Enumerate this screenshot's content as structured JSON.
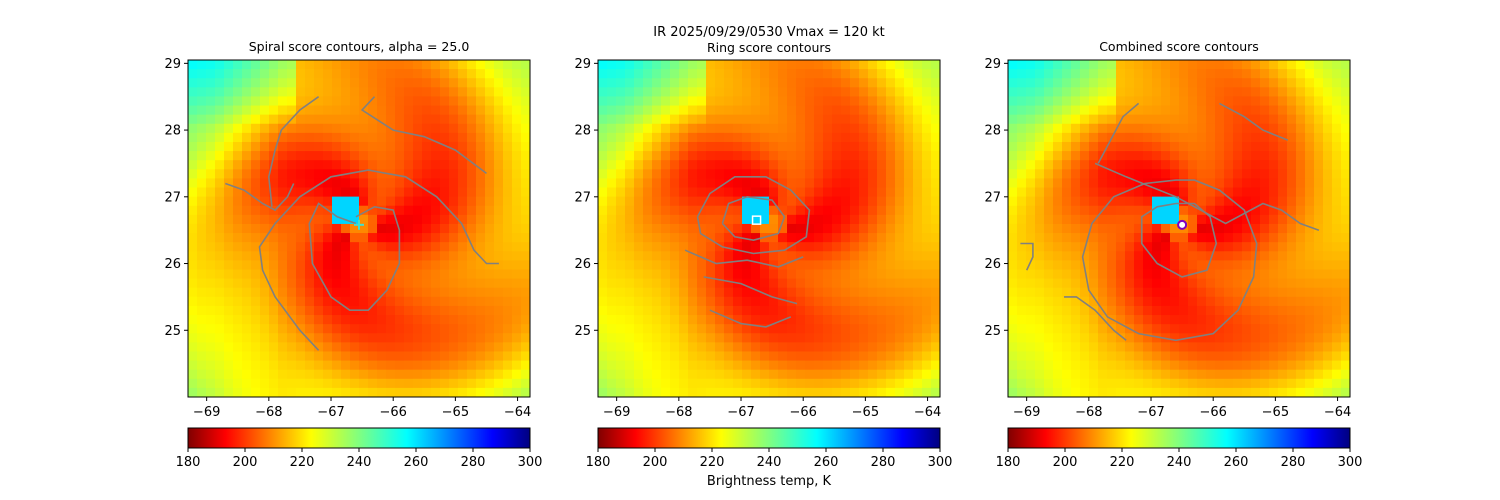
{
  "figure": {
    "suptitle_line1": "IR  2025/09/29/0530    Vmax = 120 kt",
    "colorbar_label": "Brightness temp, K"
  },
  "colormap": "jet_r",
  "colors": {
    "contour": "#808080",
    "background": "#ffffff"
  },
  "chart_data": [
    {
      "type": "heatmap",
      "title": "Spiral score contours, alpha = 25.0",
      "xlim": [
        -69.3,
        -63.8
      ],
      "ylim": [
        24.0,
        29.05
      ],
      "xticks": [
        -69,
        -68,
        -67,
        -66,
        -65,
        -64
      ],
      "yticks": [
        25,
        26,
        27,
        28,
        29
      ],
      "colorbar": {
        "range": [
          180,
          300
        ],
        "ticks": [
          180,
          200,
          220,
          240,
          260,
          280,
          300
        ]
      },
      "marker": {
        "shape": "plus",
        "lon": -66.55,
        "lat": 26.58,
        "color": "#40e0d0"
      },
      "contours": [
        [
          [
            -68.7,
            27.2
          ],
          [
            -68.4,
            27.1
          ],
          [
            -68.1,
            26.9
          ],
          [
            -67.9,
            26.8
          ],
          [
            -67.7,
            27.0
          ],
          [
            -67.6,
            27.2
          ]
        ],
        [
          [
            -67.2,
            28.5
          ],
          [
            -67.5,
            28.3
          ],
          [
            -67.8,
            28.0
          ],
          [
            -67.9,
            27.7
          ],
          [
            -68.0,
            27.3
          ],
          [
            -67.95,
            26.85
          ]
        ],
        [
          [
            -66.3,
            28.5
          ],
          [
            -66.5,
            28.3
          ],
          [
            -66.0,
            28.0
          ],
          [
            -65.5,
            27.9
          ],
          [
            -65.0,
            27.7
          ],
          [
            -64.5,
            27.35
          ]
        ],
        [
          [
            -67.2,
            24.7
          ],
          [
            -67.5,
            25.0
          ],
          [
            -67.9,
            25.5
          ],
          [
            -68.1,
            25.9
          ],
          [
            -68.15,
            26.25
          ],
          [
            -67.9,
            26.6
          ],
          [
            -67.5,
            27.0
          ],
          [
            -67.0,
            27.3
          ],
          [
            -66.4,
            27.4
          ],
          [
            -65.8,
            27.3
          ],
          [
            -65.3,
            27.0
          ],
          [
            -64.9,
            26.6
          ],
          [
            -64.7,
            26.2
          ],
          [
            -64.5,
            26.0
          ],
          [
            -64.3,
            26.0
          ]
        ],
        [
          [
            -66.6,
            26.6
          ],
          [
            -66.9,
            26.7
          ],
          [
            -67.2,
            26.9
          ],
          [
            -67.35,
            26.6
          ],
          [
            -67.3,
            26.0
          ],
          [
            -67.0,
            25.5
          ],
          [
            -66.7,
            25.3
          ],
          [
            -66.4,
            25.3
          ],
          [
            -66.1,
            25.6
          ],
          [
            -65.9,
            26.0
          ],
          [
            -65.9,
            26.5
          ],
          [
            -66.0,
            26.8
          ],
          [
            -66.3,
            26.85
          ],
          [
            -66.6,
            26.7
          ]
        ]
      ]
    },
    {
      "type": "heatmap",
      "title": "Ring score contours",
      "xlim": [
        -69.3,
        -63.8
      ],
      "ylim": [
        24.0,
        29.05
      ],
      "xticks": [
        -69,
        -68,
        -67,
        -66,
        -65,
        -64
      ],
      "yticks": [
        25,
        26,
        27,
        28,
        29
      ],
      "colorbar": {
        "range": [
          180,
          300
        ],
        "ticks": [
          180,
          200,
          220,
          240,
          260,
          280,
          300
        ]
      },
      "marker": {
        "shape": "square",
        "lon": -66.75,
        "lat": 26.65,
        "color": "#ffffff"
      },
      "contours": [
        [
          [
            -67.7,
            26.7
          ],
          [
            -67.5,
            27.05
          ],
          [
            -67.1,
            27.3
          ],
          [
            -66.6,
            27.3
          ],
          [
            -66.2,
            27.1
          ],
          [
            -65.9,
            26.8
          ],
          [
            -65.95,
            26.4
          ],
          [
            -66.3,
            26.2
          ],
          [
            -66.8,
            26.15
          ],
          [
            -67.3,
            26.25
          ],
          [
            -67.65,
            26.45
          ],
          [
            -67.7,
            26.7
          ]
        ],
        [
          [
            -67.3,
            26.6
          ],
          [
            -67.2,
            26.9
          ],
          [
            -66.9,
            27.0
          ],
          [
            -66.5,
            26.95
          ],
          [
            -66.3,
            26.7
          ],
          [
            -66.4,
            26.45
          ],
          [
            -66.8,
            26.35
          ],
          [
            -67.1,
            26.4
          ],
          [
            -67.3,
            26.6
          ]
        ],
        [
          [
            -67.9,
            26.2
          ],
          [
            -67.4,
            26.0
          ],
          [
            -66.9,
            26.05
          ],
          [
            -66.4,
            25.95
          ],
          [
            -66.0,
            26.1
          ]
        ],
        [
          [
            -67.6,
            25.8
          ],
          [
            -67.0,
            25.7
          ],
          [
            -66.5,
            25.5
          ],
          [
            -66.1,
            25.4
          ]
        ],
        [
          [
            -67.5,
            25.3
          ],
          [
            -67.0,
            25.1
          ],
          [
            -66.6,
            25.05
          ],
          [
            -66.2,
            25.2
          ]
        ]
      ]
    },
    {
      "type": "heatmap",
      "title": "Combined score contours",
      "xlim": [
        -69.3,
        -63.8
      ],
      "ylim": [
        24.0,
        29.05
      ],
      "xticks": [
        -69,
        -68,
        -67,
        -66,
        -65,
        -64
      ],
      "yticks": [
        25,
        26,
        27,
        28,
        29
      ],
      "colorbar": {
        "range": [
          180,
          300
        ],
        "ticks": [
          180,
          200,
          220,
          240,
          260,
          280,
          300
        ]
      },
      "marker": {
        "shape": "circle",
        "lon": -66.5,
        "lat": 26.58,
        "color": "#8000c0"
      },
      "contours": [
        [
          [
            -67.2,
            28.4
          ],
          [
            -67.45,
            28.2
          ],
          [
            -67.65,
            27.85
          ],
          [
            -67.85,
            27.5
          ]
        ],
        [
          [
            -65.9,
            28.4
          ],
          [
            -65.5,
            28.2
          ],
          [
            -65.2,
            28.0
          ],
          [
            -64.8,
            27.85
          ]
        ],
        [
          [
            -69.1,
            26.3
          ],
          [
            -68.9,
            26.3
          ],
          [
            -68.9,
            26.1
          ],
          [
            -69.0,
            25.9
          ]
        ],
        [
          [
            -68.4,
            25.5
          ],
          [
            -68.2,
            25.5
          ],
          [
            -67.9,
            25.3
          ],
          [
            -67.6,
            25.0
          ],
          [
            -67.4,
            24.85
          ]
        ],
        [
          [
            -67.9,
            27.5
          ],
          [
            -67.4,
            27.3
          ],
          [
            -66.6,
            27.0
          ],
          [
            -65.8,
            26.6
          ],
          [
            -65.2,
            26.9
          ],
          [
            -64.9,
            26.8
          ],
          [
            -64.6,
            26.6
          ],
          [
            -64.3,
            26.5
          ]
        ],
        [
          [
            -66.6,
            27.25
          ],
          [
            -67.1,
            27.2
          ],
          [
            -67.6,
            27.0
          ],
          [
            -67.95,
            26.6
          ],
          [
            -68.1,
            26.1
          ],
          [
            -68.0,
            25.6
          ],
          [
            -67.7,
            25.2
          ],
          [
            -67.2,
            24.95
          ],
          [
            -66.6,
            24.85
          ],
          [
            -66.0,
            24.95
          ],
          [
            -65.6,
            25.3
          ],
          [
            -65.35,
            25.8
          ],
          [
            -65.3,
            26.3
          ],
          [
            -65.5,
            26.8
          ],
          [
            -65.9,
            27.1
          ],
          [
            -66.3,
            27.25
          ],
          [
            -66.6,
            27.25
          ]
        ],
        [
          [
            -66.6,
            26.9
          ],
          [
            -66.9,
            26.85
          ],
          [
            -67.15,
            26.7
          ],
          [
            -67.15,
            26.3
          ],
          [
            -66.9,
            26.0
          ],
          [
            -66.5,
            25.8
          ],
          [
            -66.1,
            25.9
          ],
          [
            -65.95,
            26.3
          ],
          [
            -66.05,
            26.7
          ],
          [
            -66.3,
            26.9
          ],
          [
            -66.6,
            26.9
          ]
        ]
      ]
    }
  ]
}
